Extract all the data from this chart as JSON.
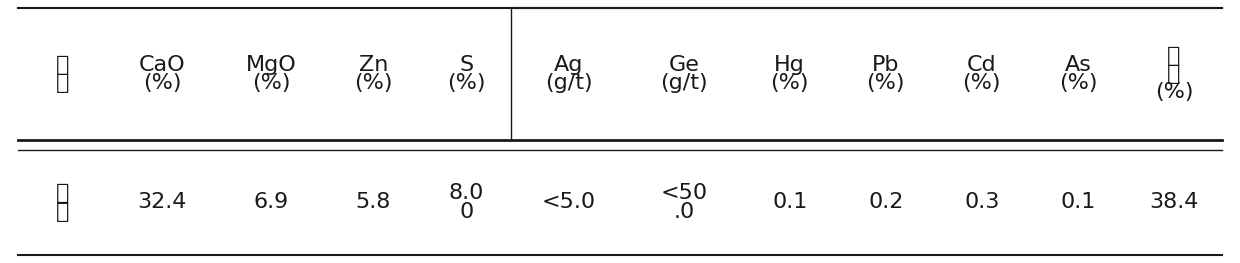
{
  "headers_line1": [
    "成",
    "CaO",
    "MgO",
    "Zn",
    "S",
    "Ag",
    "Ge",
    "Hg",
    "Pb",
    "Cd",
    "As",
    "水"
  ],
  "headers_line2": [
    "分",
    "(%)",
    "(%)",
    "(%)",
    "(%)",
    "(g/t)",
    "(g/t)",
    "(%)",
    "(%)",
    "(%)",
    "(%)",
    "分"
  ],
  "headers_line3": [
    "",
    "",
    "",
    "",
    "",
    "",
    "",
    "",
    "",
    "",
    "",
    "(%)"
  ],
  "row_label_lines": [
    "含",
    "量"
  ],
  "values": [
    "32.4",
    "6.9",
    "5.8",
    "8.0\n0",
    "<5.0",
    "<50\n.0",
    "0.1",
    "0.2",
    "0.3",
    "0.1",
    "38.4"
  ],
  "bg_color": "#ffffff",
  "text_color": "#1a1a1a",
  "line_color": "#1a1a1a",
  "header_fontsize": 16,
  "value_fontsize": 16
}
